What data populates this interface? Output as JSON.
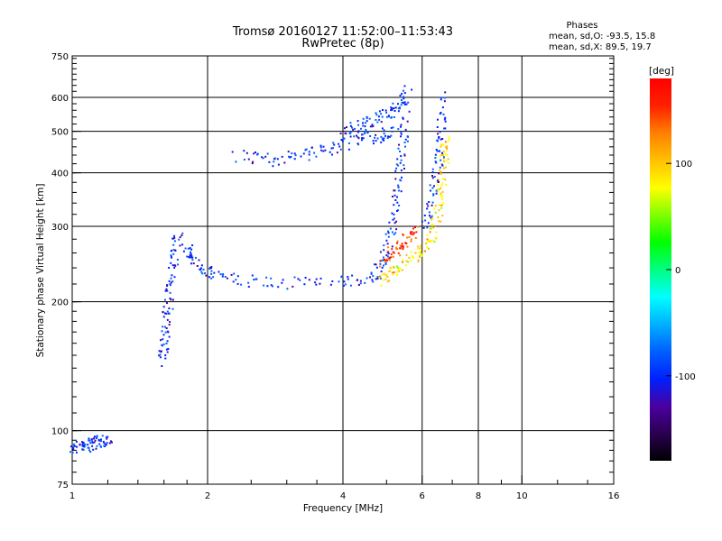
{
  "header": {
    "title": "Tromsø 20160127 11:52:00–11:53:43",
    "subtitle": "RwPretec (8p)"
  },
  "stats": {
    "heading": "Phases",
    "line_o": "mean, sd,O:  -93.5, 15.8",
    "line_x": "mean, sd,X:   89.5, 19.7"
  },
  "colorbar": {
    "unit": "[deg]",
    "ticks": [
      {
        "value": 100,
        "label": "100"
      },
      {
        "value": 0,
        "label": "0"
      },
      {
        "value": -100,
        "label": "-100"
      }
    ],
    "range": [
      -180,
      180
    ],
    "palette": [
      "#000000",
      "#2a0050",
      "#4a00a0",
      "#0020ff",
      "#0060ff",
      "#00b0ff",
      "#00ffff",
      "#00ff80",
      "#00ff00",
      "#80ff00",
      "#ffff00",
      "#ffc000",
      "#ff8000",
      "#ff2000",
      "#ff0000"
    ]
  },
  "chart_data": {
    "type": "scatter",
    "title": "Tromsø 20160127 11:52:00–11:53:43",
    "subtitle": "RwPretec (8p)",
    "xlabel": "Frequency [MHz]",
    "ylabel": "Stationary phase Virtual Height [km]",
    "x_scale": "log",
    "y_scale": "log",
    "xlim": [
      1,
      16
    ],
    "ylim": [
      75,
      750
    ],
    "x_ticks": [
      1,
      2,
      4,
      6,
      8,
      10,
      16
    ],
    "y_ticks": [
      75,
      100,
      200,
      300,
      400,
      500,
      600,
      750
    ],
    "x_gridlines": [
      2,
      4,
      6,
      8,
      10
    ],
    "y_gridlines": [
      100,
      200,
      300,
      400,
      500,
      600
    ],
    "grid": true,
    "color_by": "phase [deg]",
    "traces": [
      {
        "phase": -95,
        "points": [
          [
            1.0,
            92
          ],
          [
            1.05,
            92
          ],
          [
            1.1,
            93
          ],
          [
            1.15,
            95
          ],
          [
            1.2,
            95
          ]
        ]
      },
      {
        "phase": -95,
        "points": [
          [
            1.58,
            145
          ],
          [
            1.6,
            165
          ],
          [
            1.62,
            190
          ],
          [
            1.65,
            220
          ],
          [
            1.68,
            260
          ],
          [
            1.72,
            290
          ]
        ]
      },
      {
        "phase": -95,
        "points": [
          [
            1.78,
            270
          ],
          [
            1.85,
            250
          ],
          [
            2.0,
            235
          ],
          [
            2.3,
            225
          ],
          [
            3.0,
            222
          ],
          [
            4.0,
            224
          ],
          [
            4.7,
            230
          ]
        ]
      },
      {
        "phase": -95,
        "points": [
          [
            4.7,
            230
          ],
          [
            4.9,
            250
          ],
          [
            5.1,
            290
          ],
          [
            5.25,
            350
          ],
          [
            5.35,
            420
          ],
          [
            5.45,
            500
          ],
          [
            5.55,
            630
          ]
        ]
      },
      {
        "phase": -95,
        "points": [
          [
            2.3,
            440
          ],
          [
            2.8,
            430
          ],
          [
            3.3,
            445
          ],
          [
            3.8,
            460
          ],
          [
            4.3,
            480
          ],
          [
            4.8,
            490
          ],
          [
            5.2,
            500
          ]
        ]
      },
      {
        "phase": -95,
        "points": [
          [
            4.0,
            500
          ],
          [
            4.4,
            520
          ],
          [
            4.8,
            540
          ],
          [
            5.2,
            560
          ],
          [
            5.5,
            600
          ]
        ]
      },
      {
        "phase": 90,
        "points": [
          [
            4.8,
            225
          ],
          [
            5.2,
            235
          ],
          [
            5.6,
            250
          ],
          [
            6.0,
            265
          ],
          [
            6.3,
            290
          ],
          [
            6.5,
            330
          ],
          [
            6.6,
            380
          ],
          [
            6.7,
            440
          ],
          [
            6.75,
            480
          ]
        ]
      },
      {
        "phase": 150,
        "points": [
          [
            4.9,
            250
          ],
          [
            5.2,
            265
          ],
          [
            5.5,
            280
          ],
          [
            5.8,
            300
          ]
        ]
      },
      {
        "phase": -95,
        "points": [
          [
            6.1,
            300
          ],
          [
            6.3,
            360
          ],
          [
            6.5,
            420
          ],
          [
            6.6,
            500
          ],
          [
            6.65,
            620
          ]
        ]
      }
    ]
  }
}
